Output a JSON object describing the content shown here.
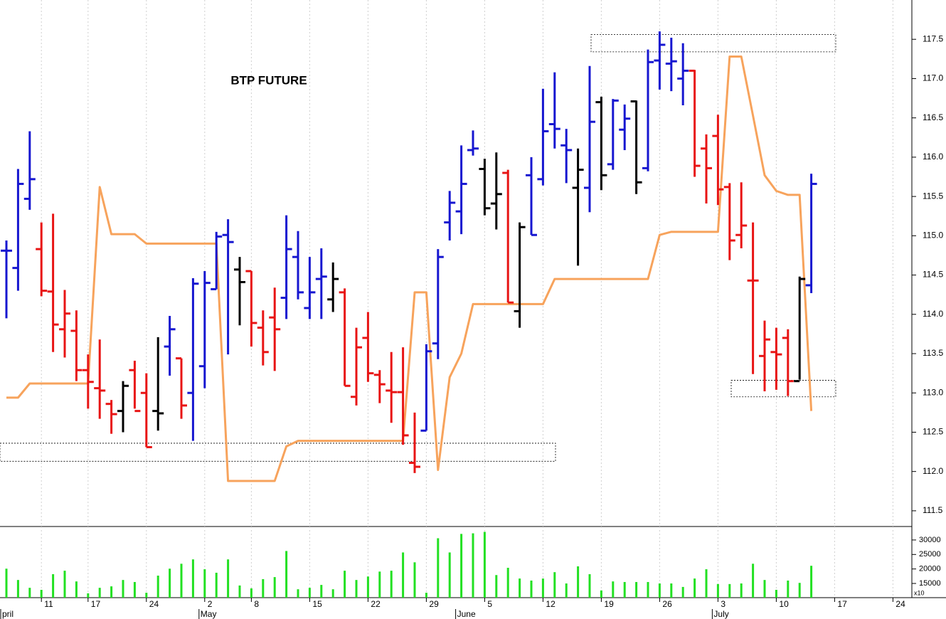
{
  "chart_data": [
    {
      "type": "ohlc",
      "title": "BTP FUTURE",
      "categories": [
        null,
        null,
        null,
        "11",
        null,
        null,
        null,
        "17",
        null,
        null,
        null,
        null,
        "24",
        null,
        null,
        null,
        null,
        "2",
        null,
        null,
        null,
        "8",
        null,
        null,
        null,
        null,
        "15",
        null,
        null,
        null,
        null,
        "22",
        null,
        null,
        null,
        null,
        "29",
        null,
        null,
        null,
        null,
        "5",
        null,
        null,
        null,
        null,
        "12",
        null,
        null,
        null,
        null,
        "19",
        null,
        null,
        null,
        null,
        "26",
        null,
        null,
        null,
        null,
        "3",
        null,
        null,
        null,
        null,
        "10",
        null,
        null,
        null,
        null,
        "17",
        null,
        null,
        null,
        null,
        "24",
        null
      ],
      "month_categories": [
        "pril",
        null,
        null,
        null,
        null,
        null,
        null,
        null,
        null,
        null,
        null,
        null,
        null,
        null,
        null,
        null,
        null,
        "May",
        null,
        null,
        null,
        null,
        null,
        null,
        null,
        null,
        null,
        null,
        null,
        null,
        null,
        null,
        null,
        null,
        null,
        null,
        null,
        null,
        null,
        "June",
        null,
        null,
        null,
        null,
        null,
        null,
        null,
        null,
        null,
        null,
        null,
        null,
        null,
        null,
        null,
        null,
        null,
        null,
        null,
        null,
        null,
        "July",
        null,
        null,
        null,
        null,
        null,
        null,
        null,
        null,
        null,
        null,
        null,
        null,
        null,
        null,
        null,
        null
      ],
      "open": [
        114.81,
        114.59,
        115.47,
        114.83,
        114.29,
        113.81,
        113.79,
        113.29,
        113.06,
        112.86,
        112.77,
        113.29,
        113.0,
        112.77,
        113.59,
        113.44,
        113.0,
        113.34,
        114.32,
        115.01,
        114.57,
        114.55,
        113.83,
        113.96,
        114.21,
        114.73,
        114.08,
        114.45,
        114.19,
        114.28,
        112.95,
        113.7,
        113.23,
        113.03,
        113.01,
        112.11,
        112.52,
        113.63,
        115.17,
        115.31,
        116.09,
        115.85,
        115.41,
        115.8,
        114.04,
        115.77,
        115.72,
        116.42,
        116.15,
        115.61,
        115.61,
        116.7,
        115.91,
        116.35,
        116.71,
        115.86,
        117.23,
        117.19,
        117.0,
        117.1,
        116.11,
        116.27,
        115.62,
        115.01,
        114.43,
        113.47,
        113.52,
        113.7,
        113.15,
        114.37,
        null,
        null,
        null,
        null,
        null,
        null,
        null,
        null
      ],
      "high": [
        114.94,
        115.85,
        116.33,
        115.17,
        115.28,
        114.31,
        114.05,
        113.49,
        113.68,
        112.91,
        113.15,
        113.41,
        113.25,
        113.71,
        113.98,
        113.44,
        114.46,
        114.55,
        115.05,
        115.21,
        114.73,
        114.55,
        114.05,
        114.34,
        115.26,
        115.06,
        114.73,
        114.84,
        114.66,
        114.33,
        113.83,
        114.03,
        113.29,
        113.52,
        113.58,
        112.75,
        113.62,
        114.83,
        115.57,
        116.15,
        116.34,
        115.98,
        116.06,
        115.84,
        115.17,
        116.0,
        116.87,
        117.08,
        116.36,
        116.11,
        117.16,
        116.77,
        116.74,
        116.67,
        116.72,
        117.37,
        117.6,
        117.52,
        117.45,
        117.11,
        116.29,
        116.54,
        115.67,
        115.68,
        115.17,
        113.92,
        113.83,
        113.81,
        114.48,
        115.79,
        null,
        null,
        null,
        null,
        null,
        null,
        null,
        null
      ],
      "low": [
        113.95,
        114.3,
        115.33,
        114.23,
        113.52,
        113.45,
        113.15,
        112.8,
        112.67,
        112.48,
        112.5,
        112.8,
        112.31,
        112.52,
        113.22,
        112.67,
        112.39,
        113.06,
        114.32,
        113.49,
        113.86,
        113.59,
        113.35,
        113.28,
        113.94,
        114.19,
        113.94,
        113.94,
        114.03,
        113.09,
        112.84,
        113.14,
        112.87,
        112.62,
        112.34,
        111.98,
        112.52,
        113.43,
        114.94,
        115.02,
        116.02,
        115.26,
        115.08,
        114.15,
        113.83,
        115.01,
        115.64,
        116.11,
        115.67,
        114.62,
        115.3,
        115.58,
        115.84,
        116.09,
        115.53,
        115.82,
        116.86,
        116.84,
        116.66,
        115.75,
        115.41,
        115.39,
        114.69,
        114.84,
        113.24,
        113.02,
        113.04,
        112.96,
        113.17,
        114.27,
        null,
        null,
        null,
        null,
        null,
        null,
        null,
        null
      ],
      "close": [
        114.81,
        115.66,
        115.72,
        114.3,
        113.87,
        114.01,
        113.29,
        113.14,
        113.03,
        112.73,
        113.09,
        112.77,
        112.31,
        112.74,
        113.81,
        112.84,
        114.39,
        114.4,
        114.99,
        114.92,
        114.41,
        113.89,
        113.52,
        113.81,
        114.83,
        114.28,
        114.28,
        114.48,
        114.45,
        113.09,
        113.58,
        113.25,
        113.11,
        113.01,
        112.46,
        112.06,
        113.53,
        114.73,
        115.42,
        115.66,
        116.11,
        115.35,
        115.53,
        114.15,
        115.11,
        115.01,
        116.33,
        116.36,
        116.09,
        115.84,
        116.45,
        115.77,
        116.72,
        116.49,
        115.68,
        117.21,
        117.43,
        117.22,
        117.1,
        115.89,
        115.86,
        115.59,
        114.94,
        115.13,
        114.43,
        113.68,
        113.49,
        113.15,
        114.45,
        115.66,
        null,
        null,
        null,
        null,
        null,
        null,
        null,
        null
      ],
      "bar_colors": [
        "#1616d0",
        "#1616d0",
        "#1616d0",
        "#e81414",
        "#e81414",
        "#e81414",
        "#e81414",
        "#e81414",
        "#e81414",
        "#e81414",
        "#000000",
        "#e81414",
        "#e81414",
        "#000000",
        "#1616d0",
        "#e81414",
        "#1616d0",
        "#1616d0",
        "#1616d0",
        "#1616d0",
        "#000000",
        "#e81414",
        "#e81414",
        "#e81414",
        "#1616d0",
        "#1616d0",
        "#1616d0",
        "#1616d0",
        "#000000",
        "#e81414",
        "#e81414",
        "#e81414",
        "#e81414",
        "#e81414",
        "#e81414",
        "#e81414",
        "#1616d0",
        "#1616d0",
        "#1616d0",
        "#1616d0",
        "#1616d0",
        "#000000",
        "#000000",
        "#e81414",
        "#000000",
        "#1616d0",
        "#1616d0",
        "#1616d0",
        "#1616d0",
        "#000000",
        "#1616d0",
        "#000000",
        "#1616d0",
        "#1616d0",
        "#000000",
        "#1616d0",
        "#1616d0",
        "#1616d0",
        "#1616d0",
        "#e81414",
        "#e81414",
        "#e81414",
        "#e81414",
        "#e81414",
        "#e81414",
        "#e81414",
        "#e81414",
        "#e81414",
        "#000000",
        "#1616d0",
        null,
        null,
        null,
        null,
        null,
        null,
        null,
        null
      ],
      "overlay_line": {
        "color": "#f7a35c",
        "values": [
          112.94,
          112.94,
          113.12,
          113.12,
          113.12,
          113.12,
          113.12,
          113.12,
          115.62,
          115.02,
          115.02,
          115.02,
          114.9,
          114.9,
          114.9,
          114.9,
          114.9,
          114.9,
          114.9,
          111.88,
          111.88,
          111.88,
          111.88,
          111.88,
          112.32,
          112.39,
          112.39,
          112.39,
          112.39,
          112.39,
          112.39,
          112.39,
          112.39,
          112.39,
          112.39,
          114.28,
          114.28,
          112.02,
          113.2,
          113.5,
          114.13,
          114.13,
          114.13,
          114.13,
          114.13,
          114.13,
          114.13,
          114.45,
          114.45,
          114.45,
          114.45,
          114.45,
          114.45,
          114.45,
          114.45,
          114.45,
          115.01,
          115.05,
          115.05,
          115.05,
          115.05,
          115.05,
          117.28,
          117.28,
          116.53,
          115.77,
          115.57,
          115.52,
          115.52,
          112.77,
          null,
          null,
          null,
          null,
          null,
          null,
          null,
          null
        ]
      },
      "zones": [
        [
          117.34,
          117.56
        ],
        [
          112.95,
          113.16
        ],
        [
          112.13,
          112.36
        ]
      ],
      "ylim": [
        111.3,
        118.0
      ],
      "yticks": [
        111.5,
        {
          "value": 112,
          "label": "112.0"
        },
        112.5,
        {
          "value": 113,
          "label": "113.0"
        },
        113.5,
        {
          "value": 114,
          "label": "114.0"
        },
        114.5,
        {
          "value": 115,
          "label": "115.0"
        },
        115.5,
        {
          "value": 116,
          "label": "116.0"
        },
        116.5,
        {
          "value": 117,
          "label": "117.0"
        },
        117.5
      ],
      "grid": true
    },
    {
      "type": "bar",
      "color": "#22e022",
      "values": [
        20100,
        16200,
        13500,
        12800,
        18200,
        19400,
        15700,
        11600,
        13500,
        14000,
        16200,
        15500,
        11800,
        17700,
        20100,
        21800,
        23300,
        19900,
        18700,
        23300,
        14300,
        13300,
        16500,
        17200,
        26200,
        13000,
        13500,
        14500,
        13000,
        19400,
        16200,
        17400,
        19100,
        19400,
        25700,
        22300,
        11800,
        30600,
        25700,
        32100,
        32300,
        32800,
        17900,
        20400,
        16700,
        16000,
        16700,
        18900,
        15000,
        20900,
        18200,
        12600,
        15700,
        15500,
        15500,
        15500,
        15000,
        15000,
        13800,
        16700,
        19900,
        14800,
        14800,
        15000,
        21800,
        16200,
        12800,
        16000,
        15200,
        21100,
        null,
        null,
        null,
        null,
        null,
        null,
        null,
        null
      ],
      "scale_label": "x10",
      "ylim": [
        10100,
        34400
      ],
      "yticks": [
        15000,
        20000,
        25000,
        30000
      ]
    }
  ]
}
